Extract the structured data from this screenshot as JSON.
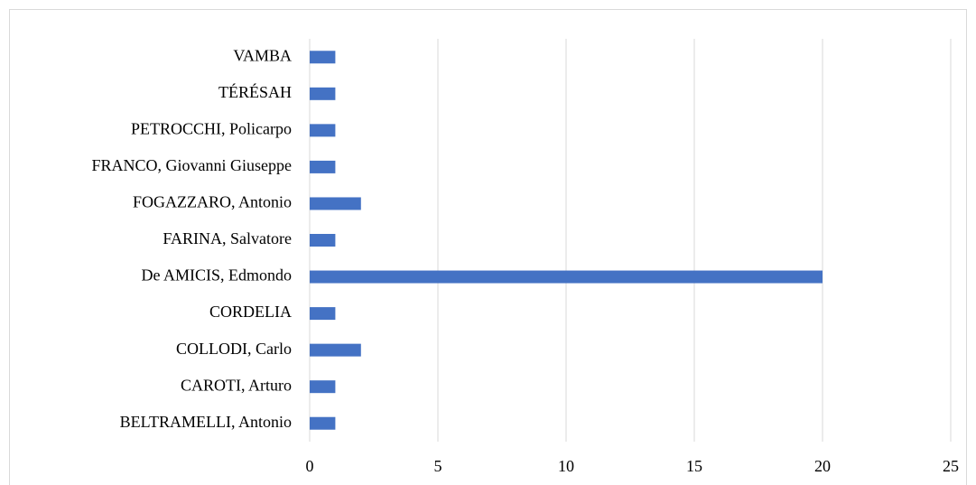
{
  "chart_data": {
    "type": "bar",
    "orientation": "horizontal",
    "categories": [
      "BELTRAMELLI, Antonio",
      "CAROTI, Arturo",
      "COLLODI, Carlo",
      "CORDELIA",
      "De AMICIS, Edmondo",
      "FARINA, Salvatore",
      "FOGAZZARO, Antonio",
      "FRANCO, Giovanni Giuseppe",
      "PETROCCHI, Policarpo",
      "TÉRÉSAH",
      "VAMBA"
    ],
    "values": [
      1,
      1,
      2,
      1,
      20,
      1,
      2,
      1,
      1,
      1,
      1
    ],
    "color": "#4472c4",
    "xlim": [
      0,
      25
    ],
    "xticks": [
      0,
      5,
      10,
      15,
      20,
      25
    ],
    "grid": true
  }
}
